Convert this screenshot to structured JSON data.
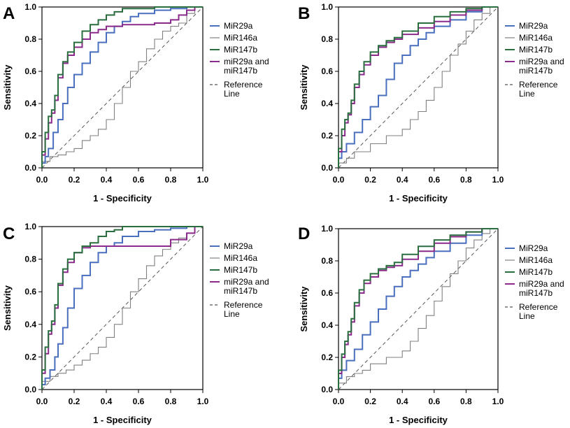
{
  "figure": {
    "legend_labels": {
      "miR29a": "MiR29a",
      "miR146a": "MiR146a",
      "miR147b": "MiR147b",
      "combo_line1": "miR29a and",
      "combo_line2": "miR147b",
      "ref_line1": "Reference",
      "ref_line2": "Line"
    },
    "colors": {
      "miR29a": "#4a6fbf",
      "miR146a": "#808080",
      "miR147b": "#2a6e3f",
      "combo": "#8a2a8a",
      "reference": "#555555",
      "axis": "#000000"
    }
  },
  "chart_data": [
    {
      "panel": "A",
      "type": "line",
      "title": "",
      "xlabel": "1 - Specificity",
      "ylabel": "Sensitivity",
      "xlim": [
        0,
        1
      ],
      "ylim": [
        0,
        1
      ],
      "xticks": [
        "0.0",
        "0.2",
        "0.4",
        "0.6",
        "0.8",
        "1.0"
      ],
      "yticks": [
        "0.0",
        "0.2",
        "0.4",
        "0.6",
        "0.8",
        "1.0"
      ],
      "legend": [
        "MiR29a",
        "MiR146a",
        "MiR147b",
        "miR29a and miR147b",
        "Reference Line"
      ],
      "series": [
        {
          "name": "MiR29a",
          "key": "miR29a",
          "x": [
            0,
            0.02,
            0.04,
            0.07,
            0.1,
            0.13,
            0.16,
            0.2,
            0.25,
            0.3,
            0.35,
            0.4,
            0.45,
            0.5,
            0.55,
            0.6,
            0.7,
            0.8,
            0.9,
            1.0
          ],
          "y": [
            0,
            0.03,
            0.07,
            0.12,
            0.22,
            0.3,
            0.4,
            0.5,
            0.58,
            0.65,
            0.72,
            0.78,
            0.84,
            0.88,
            0.91,
            0.94,
            0.96,
            0.98,
            0.99,
            1.0
          ]
        },
        {
          "name": "MiR146a",
          "key": "miR146a",
          "x": [
            0,
            0.05,
            0.1,
            0.15,
            0.2,
            0.25,
            0.3,
            0.35,
            0.4,
            0.45,
            0.5,
            0.55,
            0.6,
            0.65,
            0.7,
            0.75,
            0.8,
            0.85,
            0.9,
            0.95,
            1.0
          ],
          "y": [
            0,
            0.04,
            0.07,
            0.08,
            0.1,
            0.12,
            0.17,
            0.2,
            0.24,
            0.3,
            0.4,
            0.5,
            0.6,
            0.66,
            0.74,
            0.8,
            0.85,
            0.88,
            0.9,
            0.96,
            1.0
          ]
        },
        {
          "name": "MiR147b",
          "key": "miR147b",
          "x": [
            0,
            0.02,
            0.04,
            0.06,
            0.08,
            0.1,
            0.13,
            0.16,
            0.2,
            0.25,
            0.3,
            0.35,
            0.4,
            0.45,
            0.5,
            0.6,
            0.7,
            0.8,
            0.9,
            1.0
          ],
          "y": [
            0,
            0.1,
            0.22,
            0.32,
            0.36,
            0.45,
            0.58,
            0.66,
            0.72,
            0.78,
            0.85,
            0.89,
            0.92,
            0.95,
            0.97,
            0.99,
            0.99,
            1.0,
            1.0,
            1.0
          ]
        },
        {
          "name": "miR29a and miR147b",
          "key": "combo",
          "x": [
            0,
            0.02,
            0.04,
            0.06,
            0.08,
            0.1,
            0.13,
            0.16,
            0.2,
            0.25,
            0.3,
            0.35,
            0.4,
            0.5,
            0.6,
            0.7,
            0.8,
            0.85,
            0.9,
            0.95,
            1.0
          ],
          "y": [
            0,
            0.08,
            0.18,
            0.28,
            0.34,
            0.42,
            0.56,
            0.65,
            0.7,
            0.75,
            0.8,
            0.84,
            0.86,
            0.88,
            0.89,
            0.89,
            0.9,
            0.92,
            0.95,
            0.98,
            1.0
          ]
        }
      ]
    },
    {
      "panel": "B",
      "type": "line",
      "title": "",
      "xlabel": "1 - Specificity",
      "ylabel": "Sensitivity",
      "xlim": [
        0,
        1
      ],
      "ylim": [
        0,
        1
      ],
      "xticks": [
        "0.0",
        "0.2",
        "0.4",
        "0.6",
        "0.8",
        "1.0"
      ],
      "yticks": [
        "0.0",
        "0.2",
        "0.4",
        "0.6",
        "0.8",
        "1.0"
      ],
      "legend": [
        "MiR29a",
        "MiR146a",
        "MiR147b",
        "miR29a and miR147b",
        "Reference Line"
      ],
      "series": [
        {
          "name": "MiR29a",
          "key": "miR29a",
          "x": [
            0,
            0.02,
            0.05,
            0.1,
            0.15,
            0.2,
            0.25,
            0.3,
            0.35,
            0.4,
            0.45,
            0.5,
            0.55,
            0.6,
            0.7,
            0.8,
            0.9,
            1.0
          ],
          "y": [
            0,
            0.06,
            0.1,
            0.15,
            0.22,
            0.3,
            0.38,
            0.45,
            0.55,
            0.65,
            0.7,
            0.76,
            0.8,
            0.84,
            0.88,
            0.92,
            0.97,
            1.0
          ]
        },
        {
          "name": "MiR146a",
          "key": "miR146a",
          "x": [
            0,
            0.05,
            0.1,
            0.2,
            0.3,
            0.4,
            0.45,
            0.5,
            0.55,
            0.6,
            0.65,
            0.7,
            0.75,
            0.8,
            0.85,
            0.9,
            0.95,
            1.0
          ],
          "y": [
            0,
            0.03,
            0.06,
            0.1,
            0.15,
            0.2,
            0.24,
            0.3,
            0.35,
            0.42,
            0.5,
            0.6,
            0.7,
            0.77,
            0.85,
            0.92,
            0.96,
            1.0
          ]
        },
        {
          "name": "MiR147b",
          "key": "miR147b",
          "x": [
            0,
            0.02,
            0.04,
            0.06,
            0.08,
            0.1,
            0.13,
            0.16,
            0.2,
            0.25,
            0.3,
            0.35,
            0.4,
            0.5,
            0.6,
            0.7,
            0.8,
            0.9,
            1.0
          ],
          "y": [
            0,
            0.12,
            0.24,
            0.3,
            0.34,
            0.42,
            0.52,
            0.6,
            0.66,
            0.72,
            0.76,
            0.79,
            0.81,
            0.85,
            0.9,
            0.94,
            0.97,
            0.99,
            1.0
          ]
        },
        {
          "name": "miR29a and miR147b",
          "key": "combo",
          "x": [
            0,
            0.02,
            0.04,
            0.06,
            0.08,
            0.1,
            0.13,
            0.16,
            0.2,
            0.25,
            0.3,
            0.35,
            0.4,
            0.5,
            0.6,
            0.7,
            0.8,
            0.9,
            1.0
          ],
          "y": [
            0,
            0.1,
            0.2,
            0.28,
            0.33,
            0.4,
            0.5,
            0.58,
            0.64,
            0.7,
            0.75,
            0.78,
            0.8,
            0.83,
            0.87,
            0.91,
            0.95,
            0.98,
            1.0
          ]
        }
      ]
    },
    {
      "panel": "C",
      "type": "line",
      "title": "",
      "xlabel": "1 - Specificity",
      "ylabel": "Sensitivity",
      "xlim": [
        0,
        1
      ],
      "ylim": [
        0,
        1
      ],
      "xticks": [
        "0.0",
        "0.2",
        "0.4",
        "0.6",
        "0.8",
        "1.0"
      ],
      "yticks": [
        "0.0",
        "0.2",
        "0.4",
        "0.6",
        "0.8",
        "1.0"
      ],
      "legend": [
        "MiR29a",
        "MiR146a",
        "MiR147b",
        "miR29a and miR147b",
        "Reference Line"
      ],
      "series": [
        {
          "name": "MiR29a",
          "key": "miR29a",
          "x": [
            0,
            0.02,
            0.05,
            0.08,
            0.1,
            0.13,
            0.16,
            0.2,
            0.25,
            0.3,
            0.35,
            0.4,
            0.45,
            0.5,
            0.6,
            0.7,
            0.8,
            0.9,
            1.0
          ],
          "y": [
            0,
            0.03,
            0.07,
            0.12,
            0.2,
            0.28,
            0.38,
            0.5,
            0.62,
            0.7,
            0.78,
            0.84,
            0.88,
            0.9,
            0.94,
            0.97,
            0.98,
            0.99,
            1.0
          ]
        },
        {
          "name": "MiR146a",
          "key": "miR146a",
          "x": [
            0,
            0.05,
            0.1,
            0.15,
            0.2,
            0.25,
            0.3,
            0.35,
            0.4,
            0.45,
            0.5,
            0.55,
            0.6,
            0.65,
            0.7,
            0.75,
            0.8,
            0.85,
            0.9,
            0.95,
            1.0
          ],
          "y": [
            0,
            0.05,
            0.08,
            0.1,
            0.12,
            0.15,
            0.18,
            0.22,
            0.26,
            0.32,
            0.4,
            0.5,
            0.6,
            0.68,
            0.76,
            0.82,
            0.86,
            0.9,
            0.93,
            0.96,
            1.0
          ]
        },
        {
          "name": "MiR147b",
          "key": "miR147b",
          "x": [
            0,
            0.02,
            0.04,
            0.06,
            0.08,
            0.1,
            0.13,
            0.16,
            0.2,
            0.25,
            0.3,
            0.35,
            0.4,
            0.45,
            0.5,
            0.6,
            0.7,
            0.8,
            0.9,
            1.0
          ],
          "y": [
            0,
            0.12,
            0.26,
            0.36,
            0.42,
            0.52,
            0.65,
            0.74,
            0.8,
            0.84,
            0.88,
            0.9,
            0.94,
            0.97,
            0.98,
            1.0,
            1.0,
            1.0,
            1.0,
            1.0
          ]
        },
        {
          "name": "miR29a and miR147b",
          "key": "combo",
          "x": [
            0,
            0.02,
            0.04,
            0.06,
            0.08,
            0.1,
            0.13,
            0.16,
            0.2,
            0.25,
            0.3,
            0.35,
            0.4,
            0.5,
            0.6,
            0.7,
            0.8,
            0.9,
            0.95,
            1.0
          ],
          "y": [
            0,
            0.1,
            0.22,
            0.34,
            0.4,
            0.5,
            0.64,
            0.72,
            0.78,
            0.84,
            0.87,
            0.88,
            0.88,
            0.88,
            0.88,
            0.88,
            0.88,
            0.92,
            0.96,
            1.0
          ]
        }
      ]
    },
    {
      "panel": "D",
      "type": "line",
      "title": "",
      "xlabel": "1 - Specificity",
      "ylabel": "Sensitivity",
      "xlim": [
        0,
        1
      ],
      "ylim": [
        0,
        1
      ],
      "xticks": [
        "0.0",
        "0.2",
        "0.4",
        "0.6",
        "0.8",
        "1.0"
      ],
      "yticks": [
        "0.0",
        "0.2",
        "0.4",
        "0.6",
        "0.8",
        "1.0"
      ],
      "legend": [
        "MiR29a",
        "MiR146a",
        "MiR147b",
        "miR29a and miR147b",
        "Reference Line"
      ],
      "series": [
        {
          "name": "MiR29a",
          "key": "miR29a",
          "x": [
            0,
            0.02,
            0.05,
            0.1,
            0.15,
            0.2,
            0.25,
            0.3,
            0.35,
            0.4,
            0.45,
            0.5,
            0.55,
            0.6,
            0.7,
            0.8,
            0.9,
            1.0
          ],
          "y": [
            0,
            0.07,
            0.12,
            0.18,
            0.25,
            0.34,
            0.42,
            0.5,
            0.58,
            0.64,
            0.7,
            0.74,
            0.78,
            0.82,
            0.86,
            0.91,
            0.96,
            1.0
          ]
        },
        {
          "name": "MiR146a",
          "key": "miR146a",
          "x": [
            0,
            0.05,
            0.1,
            0.15,
            0.2,
            0.3,
            0.4,
            0.45,
            0.5,
            0.55,
            0.6,
            0.65,
            0.7,
            0.75,
            0.8,
            0.85,
            0.9,
            0.95,
            1.0
          ],
          "y": [
            0,
            0.04,
            0.08,
            0.1,
            0.12,
            0.16,
            0.2,
            0.24,
            0.3,
            0.38,
            0.46,
            0.55,
            0.64,
            0.72,
            0.8,
            0.88,
            0.93,
            0.97,
            1.0
          ]
        },
        {
          "name": "MiR147b",
          "key": "miR147b",
          "x": [
            0,
            0.02,
            0.04,
            0.06,
            0.08,
            0.1,
            0.13,
            0.16,
            0.2,
            0.25,
            0.3,
            0.35,
            0.4,
            0.5,
            0.6,
            0.7,
            0.8,
            0.9,
            1.0
          ],
          "y": [
            0,
            0.12,
            0.22,
            0.3,
            0.36,
            0.44,
            0.54,
            0.62,
            0.68,
            0.72,
            0.75,
            0.77,
            0.79,
            0.84,
            0.89,
            0.93,
            0.96,
            0.98,
            1.0
          ]
        },
        {
          "name": "miR29a and miR147b",
          "key": "combo",
          "x": [
            0,
            0.02,
            0.04,
            0.06,
            0.08,
            0.1,
            0.13,
            0.16,
            0.2,
            0.25,
            0.3,
            0.35,
            0.4,
            0.5,
            0.6,
            0.7,
            0.8,
            0.9,
            1.0
          ],
          "y": [
            0,
            0.1,
            0.2,
            0.28,
            0.34,
            0.42,
            0.52,
            0.6,
            0.66,
            0.7,
            0.74,
            0.76,
            0.77,
            0.81,
            0.86,
            0.91,
            0.95,
            0.98,
            1.0
          ]
        }
      ]
    }
  ]
}
